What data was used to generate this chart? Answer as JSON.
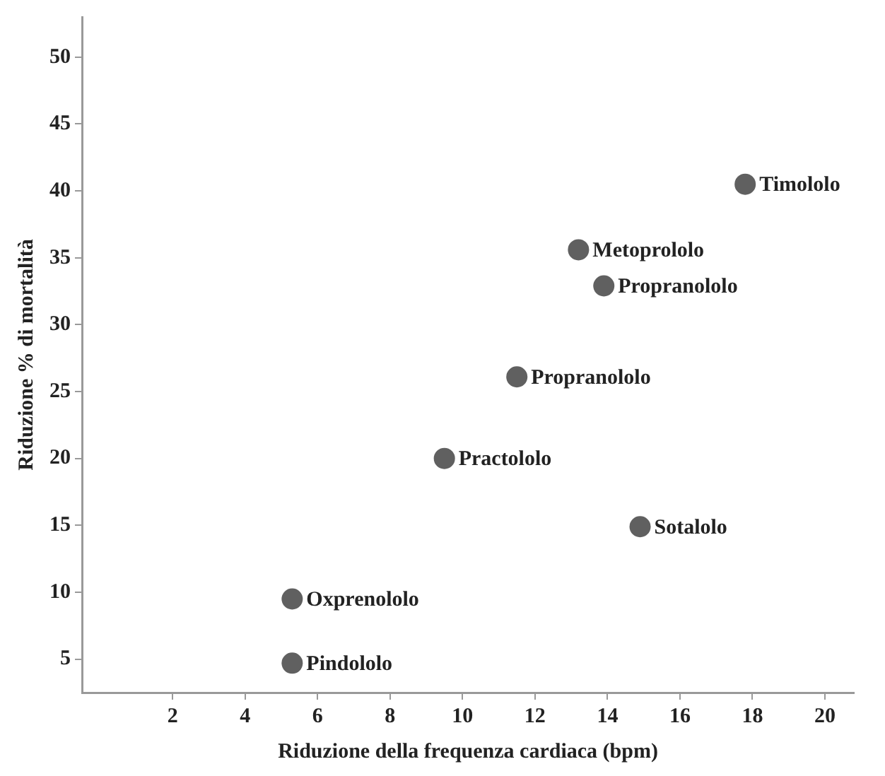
{
  "chart_data": {
    "type": "scatter",
    "xlabel": "Riduzione della frequenza cardiaca (bpm)",
    "ylabel": "Riduzione % di mortalità",
    "x": [
      17.8,
      13.2,
      13.9,
      11.5,
      9.5,
      14.9,
      5.3,
      5.3
    ],
    "series": [
      {
        "color": "#606060",
        "values": [
          40.5,
          35.6,
          32.9,
          26.1,
          20,
          14.9,
          9.5,
          4.7
        ]
      }
    ],
    "xlim": [
      -0.5,
      20.8
    ],
    "xticks": [
      2,
      4,
      6,
      8,
      10,
      12,
      14,
      16,
      18,
      20
    ],
    "ylim": [
      2.5,
      53
    ],
    "yticks": [
      5,
      10,
      15,
      20,
      25,
      30,
      35,
      40,
      45,
      50
    ],
    "grid": false,
    "legend": false,
    "marker": "circle",
    "annotations": [
      {
        "text": "Timololo",
        "x": 17.8,
        "y": 40.5
      },
      {
        "text": "Metoprololo",
        "x": 13.2,
        "y": 35.6
      },
      {
        "text": "Propranololo",
        "x": 13.9,
        "y": 32.9
      },
      {
        "text": "Propranololo",
        "x": 11.5,
        "y": 26.1
      },
      {
        "text": "Practololo",
        "x": 9.5,
        "y": 20
      },
      {
        "text": "Sotalolo",
        "x": 14.9,
        "y": 14.9
      },
      {
        "text": "Oxprenololo",
        "x": 5.3,
        "y": 9.5
      },
      {
        "text": "Pindololo",
        "x": 5.3,
        "y": 4.7
      }
    ]
  }
}
